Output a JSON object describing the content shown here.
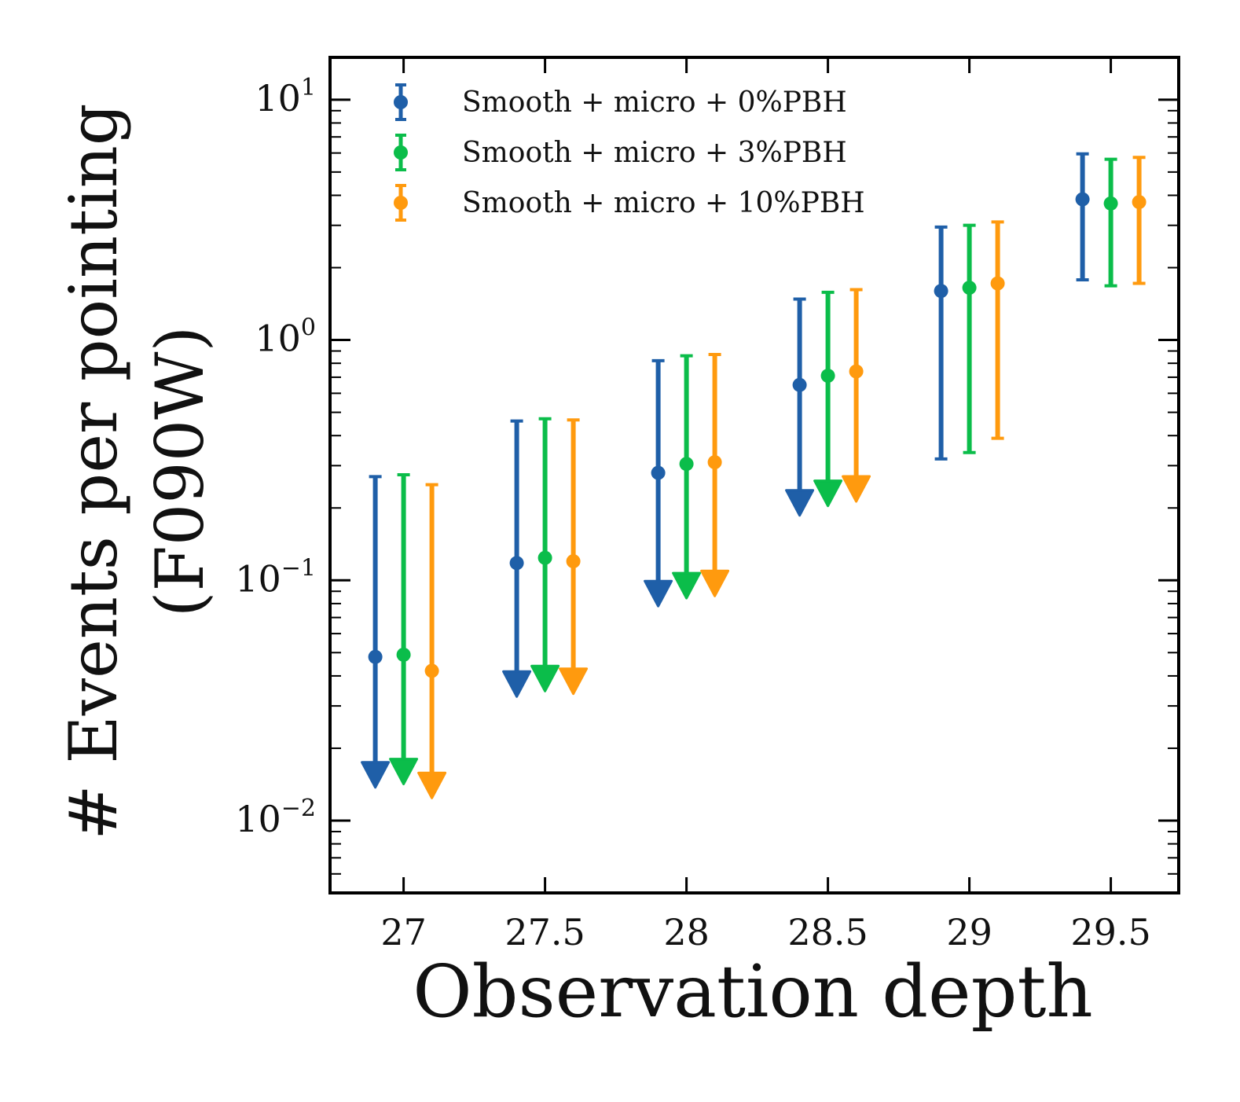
{
  "chart_data": {
    "type": "scatter",
    "subtype": "errorbar-log",
    "title": "",
    "xlabel": "Observation depth",
    "ylabel_line1": "# Events per pointing",
    "ylabel_line2": "(F090W)",
    "xlim": [
      26.74,
      29.74
    ],
    "ylim": [
      0.005,
      15
    ],
    "yscale": "log",
    "grid": false,
    "legend_position": "top-left",
    "x_ticks": [
      {
        "value": 27,
        "label": "27"
      },
      {
        "value": 27.5,
        "label": "27.5"
      },
      {
        "value": 28,
        "label": "28"
      },
      {
        "value": 28.5,
        "label": "28.5"
      },
      {
        "value": 29,
        "label": "29"
      },
      {
        "value": 29.5,
        "label": "29.5"
      }
    ],
    "y_ticks": [
      {
        "value": 0.01,
        "base": "10",
        "exp": "−2"
      },
      {
        "value": 0.1,
        "base": "10",
        "exp": "−1"
      },
      {
        "value": 1,
        "base": "10",
        "exp": "0"
      },
      {
        "value": 10,
        "base": "10",
        "exp": "1"
      }
    ],
    "series": [
      {
        "name": "Smooth + micro + 0%PBH",
        "color": "#1f5fa8",
        "points": [
          {
            "x": 26.9,
            "y": 0.048,
            "upper": 0.27,
            "lower_arrow": 0.0155
          },
          {
            "x": 27.4,
            "y": 0.118,
            "upper": 0.46,
            "lower_arrow": 0.037
          },
          {
            "x": 27.9,
            "y": 0.28,
            "upper": 0.82,
            "lower_arrow": 0.088
          },
          {
            "x": 28.4,
            "y": 0.65,
            "upper": 1.48,
            "lower_arrow": 0.21
          },
          {
            "x": 28.9,
            "y": 1.6,
            "upper": 2.95,
            "lower": 0.32
          },
          {
            "x": 29.4,
            "y": 3.85,
            "upper": 5.95,
            "lower": 1.78
          }
        ]
      },
      {
        "name": "Smooth + micro + 3%PBH",
        "color": "#0bbd4a",
        "points": [
          {
            "x": 27.0,
            "y": 0.049,
            "upper": 0.275,
            "lower_arrow": 0.016
          },
          {
            "x": 27.5,
            "y": 0.124,
            "upper": 0.47,
            "lower_arrow": 0.039
          },
          {
            "x": 28.0,
            "y": 0.305,
            "upper": 0.86,
            "lower_arrow": 0.095
          },
          {
            "x": 28.5,
            "y": 0.71,
            "upper": 1.58,
            "lower_arrow": 0.23
          },
          {
            "x": 29.0,
            "y": 1.65,
            "upper": 3.0,
            "lower": 0.34
          },
          {
            "x": 29.5,
            "y": 3.7,
            "upper": 5.65,
            "lower": 1.68
          }
        ]
      },
      {
        "name": "Smooth + micro + 10%PBH",
        "color": "#ff9a0e",
        "points": [
          {
            "x": 27.1,
            "y": 0.042,
            "upper": 0.25,
            "lower_arrow": 0.014
          },
          {
            "x": 27.6,
            "y": 0.12,
            "upper": 0.465,
            "lower_arrow": 0.038
          },
          {
            "x": 28.1,
            "y": 0.31,
            "upper": 0.87,
            "lower_arrow": 0.097
          },
          {
            "x": 28.6,
            "y": 0.74,
            "upper": 1.62,
            "lower_arrow": 0.24
          },
          {
            "x": 29.1,
            "y": 1.72,
            "upper": 3.1,
            "lower": 0.39
          },
          {
            "x": 29.6,
            "y": 3.75,
            "upper": 5.75,
            "lower": 1.72
          }
        ]
      }
    ]
  }
}
